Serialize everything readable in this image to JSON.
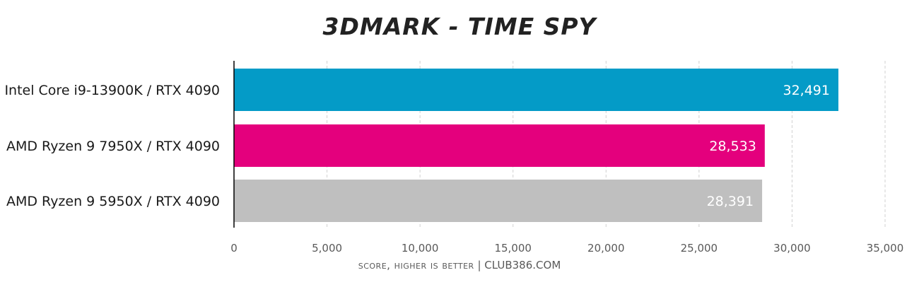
{
  "chart_data": {
    "type": "bar",
    "orientation": "horizontal",
    "title": "3DMARK - TIME SPY",
    "xlabel": "score, higher is better",
    "credit": "| CLUB386.COM",
    "categories": [
      "Intel Core i9-13900K / RTX 4090",
      "AMD Ryzen 9 7950X / RTX 4090",
      "AMD Ryzen 9 5950X / RTX 4090"
    ],
    "values": [
      32491,
      28533,
      28391
    ],
    "value_labels": [
      "32,491",
      "28,533",
      "28,391"
    ],
    "colors": [
      "#049bc7",
      "#e4007d",
      "#bfbfbf"
    ],
    "xlim": [
      0,
      35000
    ],
    "xticks": [
      0,
      5000,
      10000,
      15000,
      20000,
      25000,
      30000,
      35000
    ],
    "xtick_labels": [
      "0",
      "5,000",
      "10,000",
      "15,000",
      "20,000",
      "25,000",
      "30,000",
      "35,000"
    ],
    "grid": "vertical-dashed",
    "legend": "none"
  }
}
